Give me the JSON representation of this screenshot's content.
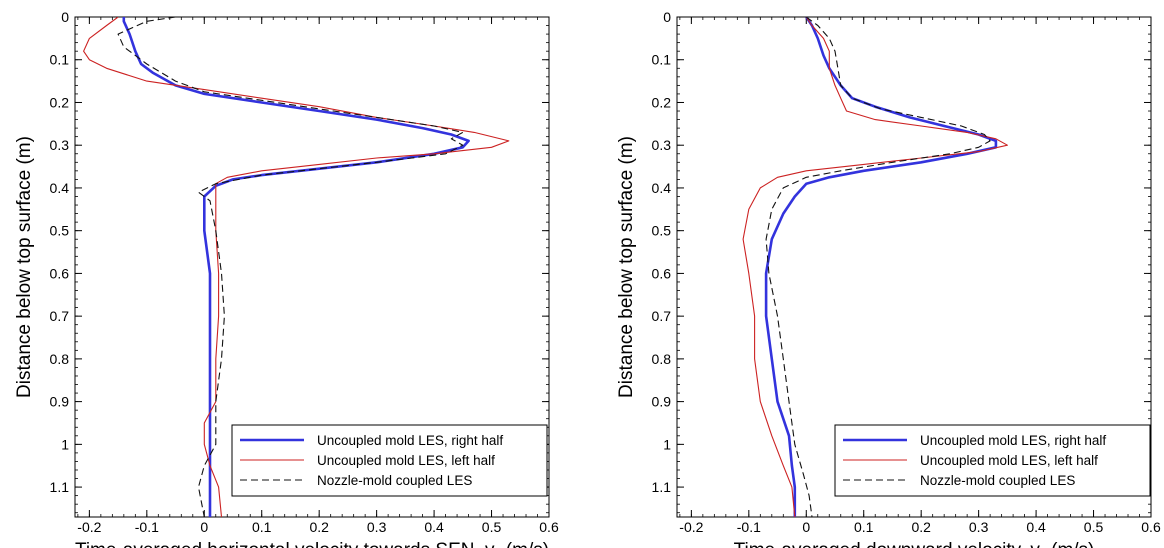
{
  "chart_data": [
    {
      "type": "line",
      "xlabel": "Time-averaged horizontal velocity towards SEN, ",
      "xlabel_var": "v",
      "xlabel_sub": "x",
      "xlabel_unit": " (m/s)",
      "ylabel": "Distance below top surface (m)",
      "xlim": [
        -0.225,
        0.6
      ],
      "ylim": [
        1.17,
        0
      ],
      "xticks": [
        "-0.2",
        "-0.1",
        "0",
        "0.1",
        "0.2",
        "0.3",
        "0.4",
        "0.5",
        "0.6"
      ],
      "xtick_values": [
        -0.2,
        -0.1,
        0,
        0.1,
        0.2,
        0.3,
        0.4,
        0.5,
        0.6
      ],
      "yticks": [
        "0",
        "0.1",
        "0.2",
        "0.3",
        "0.4",
        "0.5",
        "0.6",
        "0.7",
        "0.8",
        "0.9",
        "1",
        "1.1"
      ],
      "ytick_values": [
        0,
        0.1,
        0.2,
        0.3,
        0.4,
        0.5,
        0.6,
        0.7,
        0.8,
        0.9,
        1.0,
        1.1
      ],
      "legend_position": "bottom-right",
      "series": [
        {
          "name": "Uncoupled mold LES, right half",
          "color": "#3333dd",
          "style": "solid-thick",
          "points": [
            [
              -0.14,
              0.0
            ],
            [
              -0.14,
              0.01
            ],
            [
              -0.13,
              0.04
            ],
            [
              -0.12,
              0.08
            ],
            [
              -0.11,
              0.11
            ],
            [
              -0.09,
              0.13
            ],
            [
              -0.05,
              0.16
            ],
            [
              0.0,
              0.18
            ],
            [
              0.1,
              0.2
            ],
            [
              0.2,
              0.22
            ],
            [
              0.3,
              0.24
            ],
            [
              0.38,
              0.26
            ],
            [
              0.43,
              0.275
            ],
            [
              0.46,
              0.29
            ],
            [
              0.45,
              0.305
            ],
            [
              0.4,
              0.32
            ],
            [
              0.3,
              0.34
            ],
            [
              0.2,
              0.355
            ],
            [
              0.1,
              0.37
            ],
            [
              0.05,
              0.38
            ],
            [
              0.02,
              0.395
            ],
            [
              0.0,
              0.42
            ],
            [
              0.0,
              0.5
            ],
            [
              0.01,
              0.6
            ],
            [
              0.01,
              0.7
            ],
            [
              0.01,
              0.8
            ],
            [
              0.01,
              0.9
            ],
            [
              0.01,
              1.0
            ],
            [
              0.01,
              1.1
            ],
            [
              0.01,
              1.17
            ]
          ]
        },
        {
          "name": "Uncoupled mold LES, left half",
          "color": "#cc2222",
          "style": "solid-thin",
          "points": [
            [
              -0.15,
              0.0
            ],
            [
              -0.17,
              0.02
            ],
            [
              -0.2,
              0.05
            ],
            [
              -0.21,
              0.08
            ],
            [
              -0.2,
              0.1
            ],
            [
              -0.17,
              0.12
            ],
            [
              -0.1,
              0.15
            ],
            [
              0.0,
              0.17
            ],
            [
              0.1,
              0.19
            ],
            [
              0.2,
              0.21
            ],
            [
              0.3,
              0.235
            ],
            [
              0.4,
              0.255
            ],
            [
              0.47,
              0.27
            ],
            [
              0.53,
              0.29
            ],
            [
              0.5,
              0.305
            ],
            [
              0.4,
              0.32
            ],
            [
              0.3,
              0.33
            ],
            [
              0.2,
              0.345
            ],
            [
              0.1,
              0.36
            ],
            [
              0.04,
              0.375
            ],
            [
              0.02,
              0.39
            ],
            [
              0.02,
              0.42
            ],
            [
              0.02,
              0.5
            ],
            [
              0.025,
              0.6
            ],
            [
              0.025,
              0.7
            ],
            [
              0.02,
              0.8
            ],
            [
              0.02,
              0.9
            ],
            [
              0.0,
              0.95
            ],
            [
              0.0,
              1.0
            ],
            [
              0.01,
              1.05
            ],
            [
              0.025,
              1.1
            ],
            [
              0.03,
              1.17
            ]
          ]
        },
        {
          "name": "Nozzle-mold coupled LES",
          "color": "#111111",
          "style": "dashed",
          "points": [
            [
              -0.05,
              0.0
            ],
            [
              -0.1,
              0.01
            ],
            [
              -0.15,
              0.04
            ],
            [
              -0.14,
              0.07
            ],
            [
              -0.1,
              0.11
            ],
            [
              -0.05,
              0.15
            ],
            [
              0.0,
              0.175
            ],
            [
              0.1,
              0.195
            ],
            [
              0.2,
              0.215
            ],
            [
              0.3,
              0.235
            ],
            [
              0.4,
              0.255
            ],
            [
              0.45,
              0.27
            ],
            [
              0.43,
              0.285
            ],
            [
              0.45,
              0.3
            ],
            [
              0.42,
              0.32
            ],
            [
              0.3,
              0.34
            ],
            [
              0.2,
              0.355
            ],
            [
              0.1,
              0.37
            ],
            [
              0.02,
              0.39
            ],
            [
              -0.01,
              0.41
            ],
            [
              0.01,
              0.43
            ],
            [
              0.02,
              0.5
            ],
            [
              0.03,
              0.6
            ],
            [
              0.035,
              0.7
            ],
            [
              0.03,
              0.8
            ],
            [
              0.02,
              0.9
            ],
            [
              0.02,
              1.0
            ],
            [
              0.0,
              1.05
            ],
            [
              -0.01,
              1.1
            ],
            [
              0.0,
              1.17
            ]
          ]
        }
      ]
    },
    {
      "type": "line",
      "xlabel": "Time-averaged downward velocity, ",
      "xlabel_var": "v",
      "xlabel_sub": "z",
      "xlabel_unit": " (m/s)",
      "ylabel": "Distance below top surface (m)",
      "xlim": [
        -0.225,
        0.6
      ],
      "ylim": [
        1.17,
        0
      ],
      "xticks": [
        "-0.2",
        "-0.1",
        "0",
        "0.1",
        "0.2",
        "0.3",
        "0.4",
        "0.5",
        "0.6"
      ],
      "xtick_values": [
        -0.2,
        -0.1,
        0,
        0.1,
        0.2,
        0.3,
        0.4,
        0.5,
        0.6
      ],
      "yticks": [
        "0",
        "0.1",
        "0.2",
        "0.3",
        "0.4",
        "0.5",
        "0.6",
        "0.7",
        "0.8",
        "0.9",
        "1",
        "1.1"
      ],
      "ytick_values": [
        0,
        0.1,
        0.2,
        0.3,
        0.4,
        0.5,
        0.6,
        0.7,
        0.8,
        0.9,
        1.0,
        1.1
      ],
      "legend_position": "bottom-right",
      "series": [
        {
          "name": "Uncoupled mold LES, right half",
          "color": "#3333dd",
          "style": "solid-thick",
          "points": [
            [
              0.0,
              0.0
            ],
            [
              0.01,
              0.02
            ],
            [
              0.02,
              0.05
            ],
            [
              0.03,
              0.09
            ],
            [
              0.04,
              0.12
            ],
            [
              0.06,
              0.16
            ],
            [
              0.08,
              0.19
            ],
            [
              0.12,
              0.21
            ],
            [
              0.18,
              0.235
            ],
            [
              0.24,
              0.255
            ],
            [
              0.3,
              0.275
            ],
            [
              0.33,
              0.29
            ],
            [
              0.33,
              0.305
            ],
            [
              0.28,
              0.32
            ],
            [
              0.2,
              0.34
            ],
            [
              0.1,
              0.36
            ],
            [
              0.04,
              0.375
            ],
            [
              0.0,
              0.39
            ],
            [
              -0.02,
              0.42
            ],
            [
              -0.04,
              0.46
            ],
            [
              -0.06,
              0.52
            ],
            [
              -0.07,
              0.6
            ],
            [
              -0.07,
              0.7
            ],
            [
              -0.06,
              0.8
            ],
            [
              -0.05,
              0.9
            ],
            [
              -0.03,
              0.98
            ],
            [
              -0.025,
              1.05
            ],
            [
              -0.02,
              1.1
            ],
            [
              -0.02,
              1.17
            ]
          ]
        },
        {
          "name": "Uncoupled mold LES, left half",
          "color": "#cc2222",
          "style": "solid-thin",
          "points": [
            [
              0.0,
              0.0
            ],
            [
              0.01,
              0.02
            ],
            [
              0.03,
              0.05
            ],
            [
              0.04,
              0.08
            ],
            [
              0.04,
              0.12
            ],
            [
              0.05,
              0.16
            ],
            [
              0.06,
              0.19
            ],
            [
              0.07,
              0.22
            ],
            [
              0.12,
              0.24
            ],
            [
              0.2,
              0.255
            ],
            [
              0.28,
              0.27
            ],
            [
              0.33,
              0.285
            ],
            [
              0.35,
              0.3
            ],
            [
              0.3,
              0.315
            ],
            [
              0.2,
              0.33
            ],
            [
              0.1,
              0.345
            ],
            [
              0.0,
              0.36
            ],
            [
              -0.05,
              0.375
            ],
            [
              -0.08,
              0.4
            ],
            [
              -0.1,
              0.45
            ],
            [
              -0.11,
              0.52
            ],
            [
              -0.1,
              0.6
            ],
            [
              -0.09,
              0.7
            ],
            [
              -0.09,
              0.8
            ],
            [
              -0.08,
              0.9
            ],
            [
              -0.06,
              0.98
            ],
            [
              -0.04,
              1.05
            ],
            [
              -0.025,
              1.1
            ],
            [
              -0.02,
              1.17
            ]
          ]
        },
        {
          "name": "Nozzle-mold coupled LES",
          "color": "#111111",
          "style": "dashed",
          "points": [
            [
              0.0,
              0.0
            ],
            [
              0.02,
              0.02
            ],
            [
              0.04,
              0.05
            ],
            [
              0.05,
              0.08
            ],
            [
              0.055,
              0.12
            ],
            [
              0.06,
              0.16
            ],
            [
              0.08,
              0.19
            ],
            [
              0.13,
              0.215
            ],
            [
              0.2,
              0.235
            ],
            [
              0.27,
              0.255
            ],
            [
              0.31,
              0.275
            ],
            [
              0.32,
              0.29
            ],
            [
              0.3,
              0.305
            ],
            [
              0.25,
              0.32
            ],
            [
              0.15,
              0.34
            ],
            [
              0.06,
              0.36
            ],
            [
              0.0,
              0.375
            ],
            [
              -0.04,
              0.4
            ],
            [
              -0.06,
              0.45
            ],
            [
              -0.07,
              0.52
            ],
            [
              -0.065,
              0.6
            ],
            [
              -0.05,
              0.7
            ],
            [
              -0.04,
              0.8
            ],
            [
              -0.03,
              0.9
            ],
            [
              -0.02,
              1.0
            ],
            [
              -0.005,
              1.07
            ],
            [
              0.005,
              1.12
            ],
            [
              0.01,
              1.17
            ]
          ]
        }
      ]
    }
  ]
}
